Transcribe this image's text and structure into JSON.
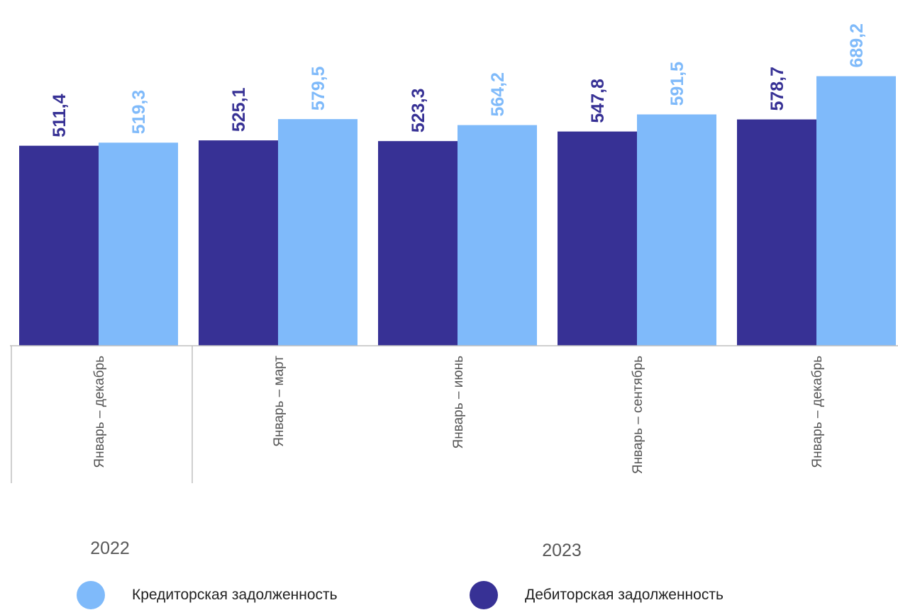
{
  "chart_data": {
    "type": "bar",
    "title": "",
    "xlabel": "",
    "ylabel": "",
    "categories": [
      "Январь – декабрь",
      "Январь – март",
      "Январь – июнь",
      "Январь – сентябрь",
      "Январь – декабрь"
    ],
    "year_groups": [
      {
        "label": "2022",
        "categories": [
          0
        ]
      },
      {
        "label": "2023",
        "categories": [
          1,
          2,
          3,
          4
        ]
      }
    ],
    "series": [
      {
        "name": "Дебиторская задолженность",
        "color": "#373195",
        "values": [
          511.4,
          525.1,
          523.3,
          547.8,
          578.7
        ],
        "value_labels": [
          "511,4",
          "525,1",
          "523,3",
          "547,8",
          "578,7"
        ]
      },
      {
        "name": "Кредиторская задолженность",
        "color": "#7fbafa",
        "values": [
          519.3,
          579.5,
          564.2,
          591.5,
          689.2
        ],
        "value_labels": [
          "519,3",
          "579,5",
          "564,2",
          "591,5",
          "689,2"
        ]
      }
    ],
    "ylim": [
      0,
      700
    ],
    "grid": false,
    "legend_position": "bottom",
    "legend_order": [
      1,
      0
    ]
  }
}
